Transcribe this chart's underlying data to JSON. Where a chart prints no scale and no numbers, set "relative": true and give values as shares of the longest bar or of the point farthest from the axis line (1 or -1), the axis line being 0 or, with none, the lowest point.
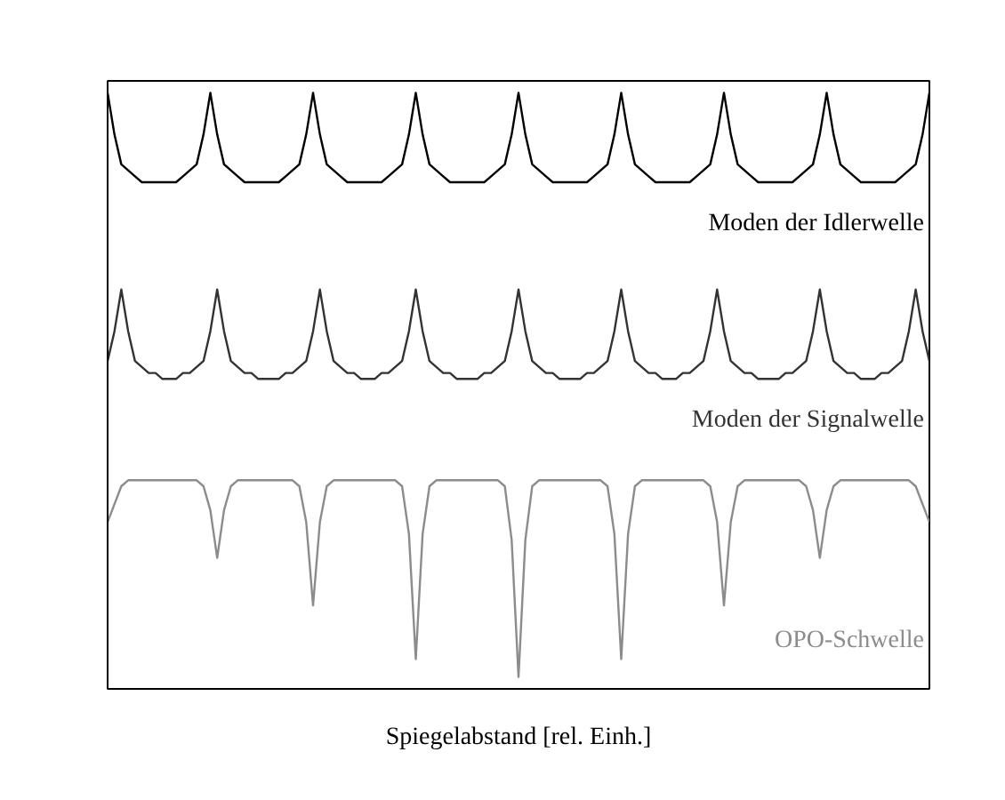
{
  "chart_data": {
    "type": "line",
    "xlabel": "Spiegelabstand [rel. Einh.]",
    "relative": true,
    "marker": "none",
    "line_style": "solid",
    "categories": [
      null,
      null,
      null,
      null,
      null,
      null,
      null,
      null,
      null,
      null,
      null,
      null,
      null,
      null,
      null,
      null,
      null,
      null,
      null,
      null,
      null,
      null,
      null,
      null,
      null,
      null,
      null,
      null,
      null,
      null,
      null,
      null,
      null,
      null,
      null,
      null,
      null,
      null,
      null,
      null,
      null,
      null,
      null,
      null,
      null,
      null,
      null,
      null,
      null,
      null,
      null,
      null,
      null,
      null,
      null,
      null,
      null,
      null,
      null,
      null,
      null,
      null,
      null,
      null,
      null,
      null,
      null,
      null,
      null,
      null,
      null,
      null,
      null,
      null,
      null,
      null,
      null,
      null,
      null,
      null,
      null,
      null,
      null,
      null,
      null,
      null,
      null,
      null,
      null,
      null,
      null,
      null,
      null,
      null,
      null,
      null,
      null,
      null,
      null,
      null,
      null,
      null,
      null,
      null,
      null,
      null,
      null,
      null,
      null,
      null,
      null,
      null,
      null,
      null,
      null,
      null,
      null,
      null,
      null,
      null,
      null
    ],
    "series": [
      {
        "name": "Moden der Idlerwelle",
        "color": "#000000",
        "values": [
          1,
          0.93,
          0.88,
          0.87,
          0.86,
          0.85,
          0.85,
          0.85,
          0.85,
          0.85,
          0.85,
          0.86,
          0.87,
          0.88,
          0.93,
          1,
          0.93,
          0.88,
          0.87,
          0.86,
          0.85,
          0.85,
          0.85,
          0.85,
          0.85,
          0.85,
          0.86,
          0.87,
          0.88,
          0.93,
          1,
          0.93,
          0.88,
          0.87,
          0.86,
          0.85,
          0.85,
          0.85,
          0.85,
          0.85,
          0.85,
          0.86,
          0.87,
          0.88,
          0.93,
          1,
          0.93,
          0.88,
          0.87,
          0.86,
          0.85,
          0.85,
          0.85,
          0.85,
          0.85,
          0.85,
          0.86,
          0.87,
          0.88,
          0.93,
          1,
          0.93,
          0.88,
          0.87,
          0.86,
          0.85,
          0.85,
          0.85,
          0.85,
          0.85,
          0.85,
          0.86,
          0.87,
          0.88,
          0.93,
          1,
          0.93,
          0.88,
          0.87,
          0.86,
          0.85,
          0.85,
          0.85,
          0.85,
          0.85,
          0.85,
          0.86,
          0.87,
          0.88,
          0.93,
          1,
          0.93,
          0.88,
          0.87,
          0.86,
          0.85,
          0.85,
          0.85,
          0.85,
          0.85,
          0.85,
          0.86,
          0.87,
          0.88,
          0.93,
          1,
          0.93,
          0.88,
          0.87,
          0.86,
          0.85,
          0.85,
          0.85,
          0.85,
          0.85,
          0.85,
          0.86,
          0.87,
          0.88,
          0.93,
          1
        ]
      },
      {
        "name": "Moden der Signalwelle",
        "color": "#333333",
        "values": [
          0.55,
          0.6,
          0.67,
          0.6,
          0.55,
          0.54,
          0.53,
          0.53,
          0.52,
          0.52,
          0.52,
          0.53,
          0.53,
          0.54,
          0.55,
          0.6,
          0.67,
          0.6,
          0.55,
          0.54,
          0.53,
          0.53,
          0.52,
          0.52,
          0.52,
          0.52,
          0.53,
          0.53,
          0.54,
          0.55,
          0.6,
          0.67,
          0.6,
          0.55,
          0.54,
          0.53,
          0.53,
          0.52,
          0.52,
          0.52,
          0.53,
          0.53,
          0.54,
          0.55,
          0.6,
          0.67,
          0.6,
          0.55,
          0.54,
          0.53,
          0.53,
          0.52,
          0.52,
          0.52,
          0.52,
          0.53,
          0.53,
          0.54,
          0.55,
          0.6,
          0.67,
          0.6,
          0.55,
          0.54,
          0.53,
          0.53,
          0.52,
          0.52,
          0.52,
          0.52,
          0.53,
          0.53,
          0.54,
          0.55,
          0.6,
          0.67,
          0.6,
          0.55,
          0.54,
          0.53,
          0.53,
          0.52,
          0.52,
          0.52,
          0.53,
          0.53,
          0.54,
          0.55,
          0.6,
          0.67,
          0.6,
          0.55,
          0.54,
          0.53,
          0.53,
          0.52,
          0.52,
          0.52,
          0.52,
          0.53,
          0.53,
          0.54,
          0.55,
          0.6,
          0.67,
          0.6,
          0.55,
          0.54,
          0.53,
          0.53,
          0.52,
          0.52,
          0.52,
          0.53,
          0.53,
          0.54,
          0.55,
          0.6,
          0.67,
          0.6,
          0.55
        ]
      },
      {
        "name": "OPO-Schwelle",
        "color": "#8c8c8c",
        "values": [
          0.28,
          0.31,
          0.34,
          0.35,
          0.35,
          0.35,
          0.35,
          0.35,
          0.35,
          0.35,
          0.35,
          0.35,
          0.35,
          0.35,
          0.34,
          0.3,
          0.22,
          0.3,
          0.34,
          0.35,
          0.35,
          0.35,
          0.35,
          0.35,
          0.35,
          0.35,
          0.35,
          0.35,
          0.34,
          0.28,
          0.14,
          0.28,
          0.34,
          0.35,
          0.35,
          0.35,
          0.35,
          0.35,
          0.35,
          0.35,
          0.35,
          0.35,
          0.35,
          0.34,
          0.26,
          0.05,
          0.26,
          0.34,
          0.35,
          0.35,
          0.35,
          0.35,
          0.35,
          0.35,
          0.35,
          0.35,
          0.35,
          0.35,
          0.34,
          0.25,
          0.02,
          0.25,
          0.34,
          0.35,
          0.35,
          0.35,
          0.35,
          0.35,
          0.35,
          0.35,
          0.35,
          0.35,
          0.35,
          0.34,
          0.26,
          0.05,
          0.26,
          0.34,
          0.35,
          0.35,
          0.35,
          0.35,
          0.35,
          0.35,
          0.35,
          0.35,
          0.35,
          0.35,
          0.34,
          0.28,
          0.14,
          0.28,
          0.34,
          0.35,
          0.35,
          0.35,
          0.35,
          0.35,
          0.35,
          0.35,
          0.35,
          0.35,
          0.34,
          0.3,
          0.22,
          0.3,
          0.34,
          0.35,
          0.35,
          0.35,
          0.35,
          0.35,
          0.35,
          0.35,
          0.35,
          0.35,
          0.35,
          0.35,
          0.34,
          0.31,
          0.28
        ]
      }
    ]
  }
}
